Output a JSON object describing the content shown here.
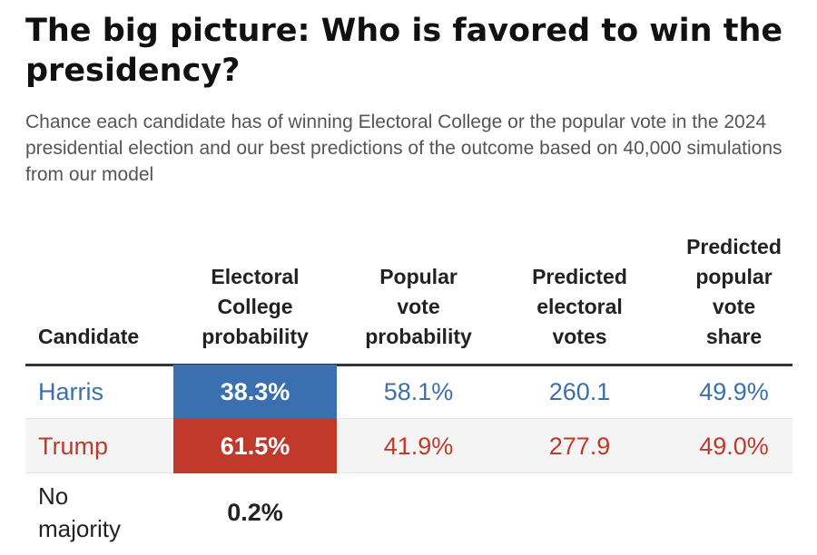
{
  "title": "The big picture: Who is favored to win the presidency?",
  "subtitle": "Chance each candidate has of winning Electoral College or the popular vote in the 2024 presidential election and our best predictions of the outcome based on 40,000 simulations from our model",
  "colors": {
    "harris": "#3a6fb0",
    "trump": "#c0392b"
  },
  "chart_data": {
    "type": "table",
    "columns": [
      "Candidate",
      "Electoral College probability",
      "Popular vote probability",
      "Predicted electoral votes",
      "Predicted popular vote share"
    ],
    "header_lines": {
      "candidate": [
        "Candidate"
      ],
      "ec_prob": [
        "Electoral",
        "College",
        "probability"
      ],
      "pv_prob": [
        "Popular",
        "vote",
        "probability"
      ],
      "ev": [
        "Predicted",
        "electoral",
        "votes"
      ],
      "pv_share": [
        "Predicted",
        "popular",
        "vote",
        "share"
      ]
    },
    "rows": [
      {
        "candidate": "Harris",
        "ec_prob": "38.3%",
        "pv_prob": "58.1%",
        "ev": "260.1",
        "pv_share": "49.9%",
        "color": "#3a6fb0"
      },
      {
        "candidate": "Trump",
        "ec_prob": "61.5%",
        "pv_prob": "41.9%",
        "ev": "277.9",
        "pv_share": "49.0%",
        "color": "#c0392b"
      },
      {
        "candidate": "No majority",
        "ec_prob": "0.2%",
        "pv_prob": "",
        "ev": "",
        "pv_share": ""
      }
    ]
  }
}
